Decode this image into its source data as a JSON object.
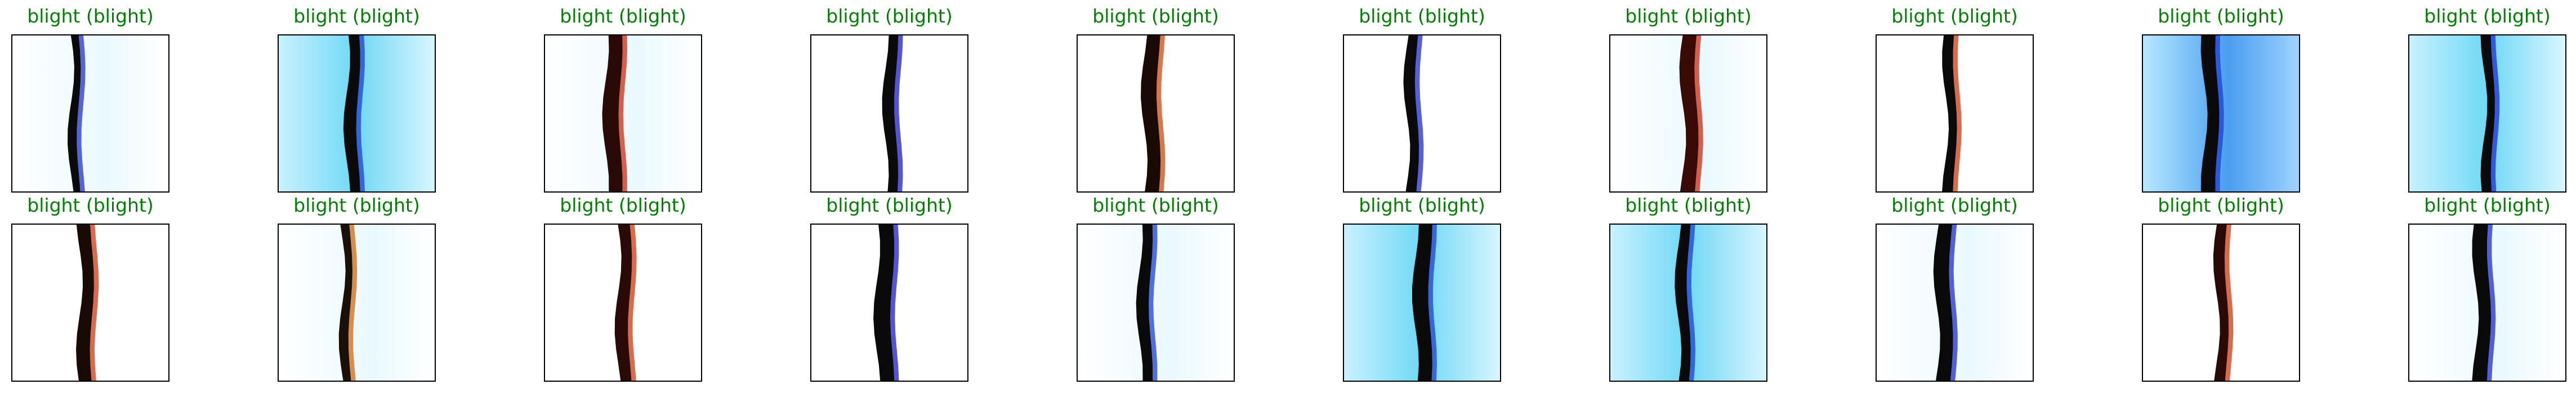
{
  "title_color": "#008000",
  "rows": [
    {
      "panels": [
        {
          "title": "blight (blight)",
          "tint": "light",
          "stripe_color": "#0a0a0a",
          "edge_color": "#2233cc"
        },
        {
          "title": "blight (blight)",
          "tint": "cyan",
          "stripe_color": "#0a0a0a",
          "edge_color": "#1b3fd9"
        },
        {
          "title": "blight (blight)",
          "tint": "light",
          "stripe_color": "#2a0a06",
          "edge_color": "#cc2a10"
        },
        {
          "title": "blight (blight)",
          "tint": "none",
          "stripe_color": "#0a0a0a",
          "edge_color": "#1b1bcc"
        },
        {
          "title": "blight (blight)",
          "tint": "none",
          "stripe_color": "#1a0a06",
          "edge_color": "#cc4a10"
        },
        {
          "title": "blight (blight)",
          "tint": "none",
          "stripe_color": "#0a0a0a",
          "edge_color": "#1b2bd0"
        },
        {
          "title": "blight (blight)",
          "tint": "light",
          "stripe_color": "#3a0a06",
          "edge_color": "#cc2a10"
        },
        {
          "title": "blight (blight)",
          "tint": "none",
          "stripe_color": "#0a0a0a",
          "edge_color": "#cc3a10"
        },
        {
          "title": "blight (blight)",
          "tint": "blue",
          "stripe_color": "#0a0a0a",
          "edge_color": "#1b3fd9"
        },
        {
          "title": "blight (blight)",
          "tint": "cyan",
          "stripe_color": "#0a0a0a",
          "edge_color": "#1b2bd9"
        }
      ]
    },
    {
      "panels": [
        {
          "title": "blight (blight)",
          "tint": "none",
          "stripe_color": "#1a0a06",
          "edge_color": "#cc3a10"
        },
        {
          "title": "blight (blight)",
          "tint": "light",
          "stripe_color": "#1a1006",
          "edge_color": "#cc6a10"
        },
        {
          "title": "blight (blight)",
          "tint": "none",
          "stripe_color": "#2a0a06",
          "edge_color": "#cc3a10"
        },
        {
          "title": "blight (blight)",
          "tint": "none",
          "stripe_color": "#0a0a0a",
          "edge_color": "#1b1bcc"
        },
        {
          "title": "blight (blight)",
          "tint": "light",
          "stripe_color": "#0a0a0a",
          "edge_color": "#1b3fd9"
        },
        {
          "title": "blight (blight)",
          "tint": "cyan",
          "stripe_color": "#0a0a0a",
          "edge_color": "#1b3fd9"
        },
        {
          "title": "blight (blight)",
          "tint": "cyan",
          "stripe_color": "#0a0a0a",
          "edge_color": "#1b3fd9"
        },
        {
          "title": "blight (blight)",
          "tint": "light",
          "stripe_color": "#0a0a0a",
          "edge_color": "#1b2bd0"
        },
        {
          "title": "blight (blight)",
          "tint": "none",
          "stripe_color": "#2a0a06",
          "edge_color": "#cc3a10"
        },
        {
          "title": "blight (blight)",
          "tint": "light",
          "stripe_color": "#0a0a0a",
          "edge_color": "#1b2bd0"
        }
      ]
    }
  ]
}
